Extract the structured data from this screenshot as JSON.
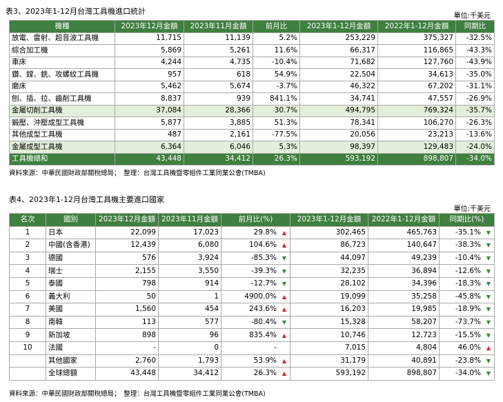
{
  "table3": {
    "title": "表3、2023年1-12月台灣工具機進口統計",
    "unit": "單位:千美元",
    "headers": [
      "機種",
      "2023年12月金額",
      "2023年11月金額",
      "前月比",
      "2023年1-12月金額",
      "2022年1-12月金額",
      "同期比"
    ],
    "rows": [
      {
        "name": "放電、雷射、超音波工具機",
        "dec": "11,715",
        "nov": "11,139",
        "mom": "5.2%",
        "ytd23": "253,229",
        "ytd22": "375,327",
        "yoy": "-32.5%"
      },
      {
        "name": "綜合加工機",
        "dec": "5,869",
        "nov": "5,261",
        "mom": "11.6%",
        "ytd23": "66,317",
        "ytd22": "116,865",
        "yoy": "-43.3%"
      },
      {
        "name": "車床",
        "dec": "4,244",
        "nov": "4,735",
        "mom": "-10.4%",
        "ytd23": "71,682",
        "ytd22": "127,760",
        "yoy": "-43.9%"
      },
      {
        "name": "鑽、鏜、銑、攻螺紋工具機",
        "dec": "957",
        "nov": "618",
        "mom": "54.9%",
        "ytd23": "22,504",
        "ytd22": "34,613",
        "yoy": "-35.0%"
      },
      {
        "name": "磨床",
        "dec": "5,462",
        "nov": "5,674",
        "mom": "-3.7%",
        "ytd23": "46,322",
        "ytd22": "67,202",
        "yoy": "-31.1%"
      },
      {
        "name": "刨、插、拉、齒削工具機",
        "dec": "8,837",
        "nov": "939",
        "mom": "841.1%",
        "ytd23": "34,741",
        "ytd22": "47,557",
        "yoy": "-26.9%"
      },
      {
        "name": "金屬切削工具機",
        "dec": "37,084",
        "nov": "28,366",
        "mom": "30.7%",
        "ytd23": "494,795",
        "ytd22": "769,324",
        "yoy": "-35.7%",
        "style": "hl"
      },
      {
        "name": "鍛壓、沖壓成型工具機",
        "dec": "5,877",
        "nov": "3,885",
        "mom": "51.3%",
        "ytd23": "78,341",
        "ytd22": "106,270",
        "yoy": "-26.3%"
      },
      {
        "name": "其他成型工具機",
        "dec": "487",
        "nov": "2,161",
        "mom": "-77.5%",
        "ytd23": "20,056",
        "ytd22": "23,213",
        "yoy": "-13.6%"
      },
      {
        "name": "金屬成型工具機",
        "dec": "6,364",
        "nov": "6,046",
        "mom": "5.3%",
        "ytd23": "98,397",
        "ytd22": "129,483",
        "yoy": "-24.0%",
        "style": "hl"
      },
      {
        "name": "工具機總和",
        "dec": "43,448",
        "nov": "34,412",
        "mom": "26.3%",
        "ytd23": "593,192",
        "ytd22": "898,807",
        "yoy": "-34.0%",
        "style": "total"
      }
    ],
    "source": "資料來源：中華民國財政部關稅總局；　整理：台灣工具機暨零組件工業同業公會(TMBA)"
  },
  "table4": {
    "title": "表4、2023年1-12月台灣工具機主要進口國家",
    "unit": "單位:千美元",
    "headers": [
      "名次",
      "國別",
      "2023年12月金額",
      "2023年11月金額",
      "前月比(%)",
      "2023年1-12月金額",
      "2022年1-12月金額",
      "同期比(%)"
    ],
    "rows": [
      {
        "rank": "1",
        "country": "日本",
        "dec": "22,099",
        "nov": "17,023",
        "mom": "29.8%",
        "mom_dir": "up",
        "ytd23": "302,465",
        "ytd22": "465,763",
        "yoy": "-35.1%",
        "yoy_dir": "down"
      },
      {
        "rank": "2",
        "country": "中國(含香港)",
        "dec": "12,439",
        "nov": "6,080",
        "mom": "104.6%",
        "mom_dir": "up",
        "ytd23": "86,723",
        "ytd22": "140,647",
        "yoy": "-38.3%",
        "yoy_dir": "down"
      },
      {
        "rank": "3",
        "country": "德國",
        "dec": "576",
        "nov": "3,924",
        "mom": "-85.3%",
        "mom_dir": "down",
        "ytd23": "44,097",
        "ytd22": "49,239",
        "yoy": "-10.4%",
        "yoy_dir": "down"
      },
      {
        "rank": "4",
        "country": "瑞士",
        "dec": "2,155",
        "nov": "3,550",
        "mom": "-39.3%",
        "mom_dir": "down",
        "ytd23": "32,235",
        "ytd22": "36,894",
        "yoy": "-12.6%",
        "yoy_dir": "down"
      },
      {
        "rank": "5",
        "country": "泰國",
        "dec": "798",
        "nov": "914",
        "mom": "-12.7%",
        "mom_dir": "down",
        "ytd23": "28,102",
        "ytd22": "34,396",
        "yoy": "-18.3%",
        "yoy_dir": "down"
      },
      {
        "rank": "6",
        "country": "義大利",
        "dec": "50",
        "nov": "1",
        "mom": "4900.0%",
        "mom_dir": "up",
        "ytd23": "19,099",
        "ytd22": "35,258",
        "yoy": "-45.8%",
        "yoy_dir": "down"
      },
      {
        "rank": "7",
        "country": "美國",
        "dec": "1,560",
        "nov": "454",
        "mom": "243.6%",
        "mom_dir": "up",
        "ytd23": "16,203",
        "ytd22": "19,985",
        "yoy": "-18.9%",
        "yoy_dir": "down"
      },
      {
        "rank": "8",
        "country": "南韓",
        "dec": "113",
        "nov": "577",
        "mom": "-80.4%",
        "mom_dir": "down",
        "ytd23": "15,328",
        "ytd22": "58,207",
        "yoy": "-73.7%",
        "yoy_dir": "down"
      },
      {
        "rank": "9",
        "country": "新加坡",
        "dec": "898",
        "nov": "96",
        "mom": "835.4%",
        "mom_dir": "up",
        "ytd23": "10,746",
        "ytd22": "12,723",
        "yoy": "-15.5%",
        "yoy_dir": "down"
      },
      {
        "rank": "10",
        "country": "法國",
        "dec": "-",
        "nov": "0",
        "mom": "-",
        "mom_dir": "",
        "ytd23": "7,015",
        "ytd22": "4,804",
        "yoy": "46.0%",
        "yoy_dir": "up"
      },
      {
        "rank": "",
        "country": "其他國家",
        "dec": "2,760",
        "nov": "1,793",
        "mom": "53.9%",
        "mom_dir": "up",
        "ytd23": "31,179",
        "ytd22": "40,891",
        "yoy": "-23.8%",
        "yoy_dir": "down"
      },
      {
        "rank": "",
        "country": "全球總額",
        "dec": "43,448",
        "nov": "34,412",
        "mom": "26.3%",
        "mom_dir": "up",
        "ytd23": "593,192",
        "ytd22": "898,807",
        "yoy": "-34.0%",
        "yoy_dir": "down"
      }
    ],
    "source": "資料來源：中華民國財政部關稅總局；　整理：台灣工具機暨零組件工業同業公會(TMBA)"
  },
  "colors": {
    "header_green": "#3f7f3f",
    "highlight_green": "#e2efda",
    "arrow_up": "#e02020",
    "arrow_down": "#2e8b2e"
  },
  "icons": {
    "up": "▲",
    "down": "▼"
  }
}
